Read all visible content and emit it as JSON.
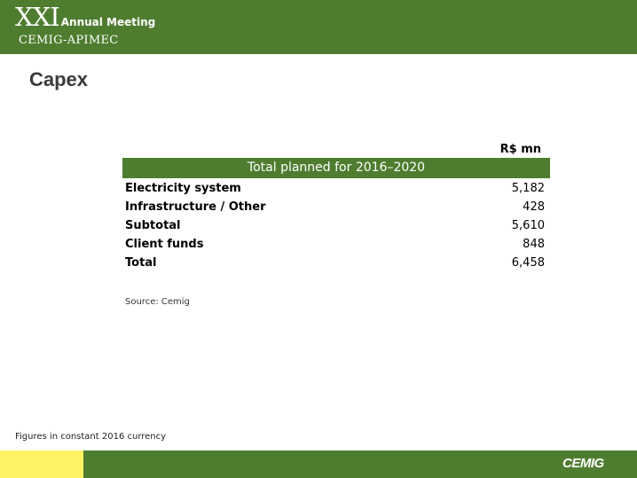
{
  "header": {
    "roman": "XXI",
    "event": "Annual Meeting",
    "org": "CEMIG-APIMEC"
  },
  "page_title": "Capex",
  "table": {
    "unit": "R$ mn",
    "heading": "Total planned for 2016–2020",
    "rows": [
      {
        "label": "Electricity system",
        "value": "5,182"
      },
      {
        "label": "Infrastructure / Other",
        "value": "428"
      },
      {
        "label": "Subtotal",
        "value": "5,610"
      },
      {
        "label": "Client funds",
        "value": "848"
      },
      {
        "label": "Total",
        "value": "6,458"
      }
    ]
  },
  "source": "Source: Cemig",
  "footnote": "Figures in constant 2016 currency",
  "logo_text": "CEMIG",
  "colors": {
    "brand_green": "#4f7d30",
    "accent_yellow": "#fff265"
  }
}
